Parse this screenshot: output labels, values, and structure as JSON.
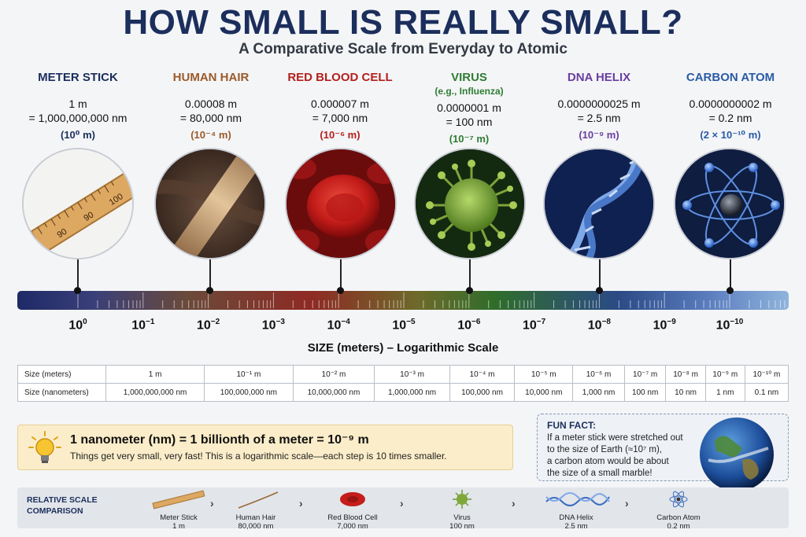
{
  "title": "HOW SMALL IS REALLY SMALL?",
  "subtitle": "A Comparative Scale from Everyday to Atomic",
  "subjects": [
    {
      "name": "METER STICK",
      "note": "",
      "meters": "1 m",
      "nano": "= 1,000,000,000 nm",
      "exp": "(10⁰ m)",
      "color": "#1b2e5c",
      "exp_color": "#1b2e5c",
      "icon": "meter-stick"
    },
    {
      "name": "HUMAN HAIR",
      "note": "",
      "meters": "0.00008 m",
      "nano": "= 80,000 nm",
      "exp": "(10⁻⁴ m)",
      "color": "#9a5a2a",
      "exp_color": "#9a5a2a",
      "icon": "human-hair"
    },
    {
      "name": "RED BLOOD CELL",
      "note": "",
      "meters": "0.000007 m",
      "nano": "= 7,000 nm",
      "exp": "(10⁻⁶ m)",
      "color": "#b3201d",
      "exp_color": "#b3201d",
      "icon": "red-blood-cell"
    },
    {
      "name": "VIRUS",
      "note": "(e.g., Influenza)",
      "meters": "0.0000001 m",
      "nano": "= 100 nm",
      "exp": "(10⁻⁷ m)",
      "color": "#2e7d32",
      "exp_color": "#2e7d32",
      "icon": "virus"
    },
    {
      "name": "DNA HELIX",
      "note": "",
      "meters": "0.0000000025 m",
      "nano": "= 2.5 nm",
      "exp": "(10⁻⁹ m)",
      "color": "#6a3ea1",
      "exp_color": "#6a3ea1",
      "icon": "dna-helix"
    },
    {
      "name": "CARBON ATOM",
      "note": "",
      "meters": "0.0000000002 m",
      "nano": "= 0.2 nm",
      "exp": "(2 × 10⁻¹⁰ m)",
      "color": "#2a5ba6",
      "exp_color": "#2a5ba6",
      "icon": "carbon-atom"
    }
  ],
  "scale": {
    "ticks": [
      {
        "base": "10",
        "exp": "0"
      },
      {
        "base": "10",
        "exp": "−1"
      },
      {
        "base": "10",
        "exp": "−2"
      },
      {
        "base": "10",
        "exp": "−3"
      },
      {
        "base": "10",
        "exp": "−4"
      },
      {
        "base": "10",
        "exp": "−5"
      },
      {
        "base": "10",
        "exp": "−6"
      },
      {
        "base": "10",
        "exp": "−7"
      },
      {
        "base": "10",
        "exp": "−8"
      },
      {
        "base": "10",
        "exp": "−9"
      },
      {
        "base": "10",
        "exp": "−10"
      }
    ],
    "axis_label": "SIZE (meters) – Logarithmic Scale"
  },
  "table": {
    "row1_header": "Size (meters)",
    "row1": [
      "1 m",
      "10⁻¹ m",
      "10⁻² m",
      "10⁻³ m",
      "10⁻⁴ m",
      "10⁻⁵ m",
      "10⁻⁶ m",
      "10⁻⁷ m",
      "10⁻⁸ m",
      "10⁻⁹ m",
      "10⁻¹⁰ m"
    ],
    "row2_header": "Size (nanometers)",
    "row2": [
      "1,000,000,000 nm",
      "100,000,000 nm",
      "10,000,000 nm",
      "1,000,000 nm",
      "100,000 nm",
      "10,000 nm",
      "1,000 nm",
      "100 nm",
      "10 nm",
      "1 nm",
      "0.1 nm"
    ]
  },
  "info": {
    "main": "1 nanometer (nm) = 1 billionth of a meter = 10⁻⁹ m",
    "sub": "Things get very small, very fast! This is a logarithmic scale—each step is 10 times smaller."
  },
  "fun_fact": {
    "title": "FUN FACT:",
    "lines": [
      "If a meter stick were stretched out",
      "to the size of Earth (≈10⁷ m),",
      "a carbon atom would be about",
      "the size of a small marble!"
    ]
  },
  "comparison": {
    "title_line1": "RELATIVE SCALE",
    "title_line2": "COMPARISON",
    "items": [
      {
        "name": "Meter Stick",
        "value": "1 m"
      },
      {
        "name": "Human Hair",
        "value": "80,000 nm"
      },
      {
        "name": "Red Blood Cell",
        "value": "7,000 nm"
      },
      {
        "name": "Virus",
        "value": "100 nm"
      },
      {
        "name": "DNA Helix",
        "value": "2.5 nm"
      },
      {
        "name": "Carbon Atom",
        "value": "0.2 nm"
      }
    ],
    "separator": "›"
  }
}
